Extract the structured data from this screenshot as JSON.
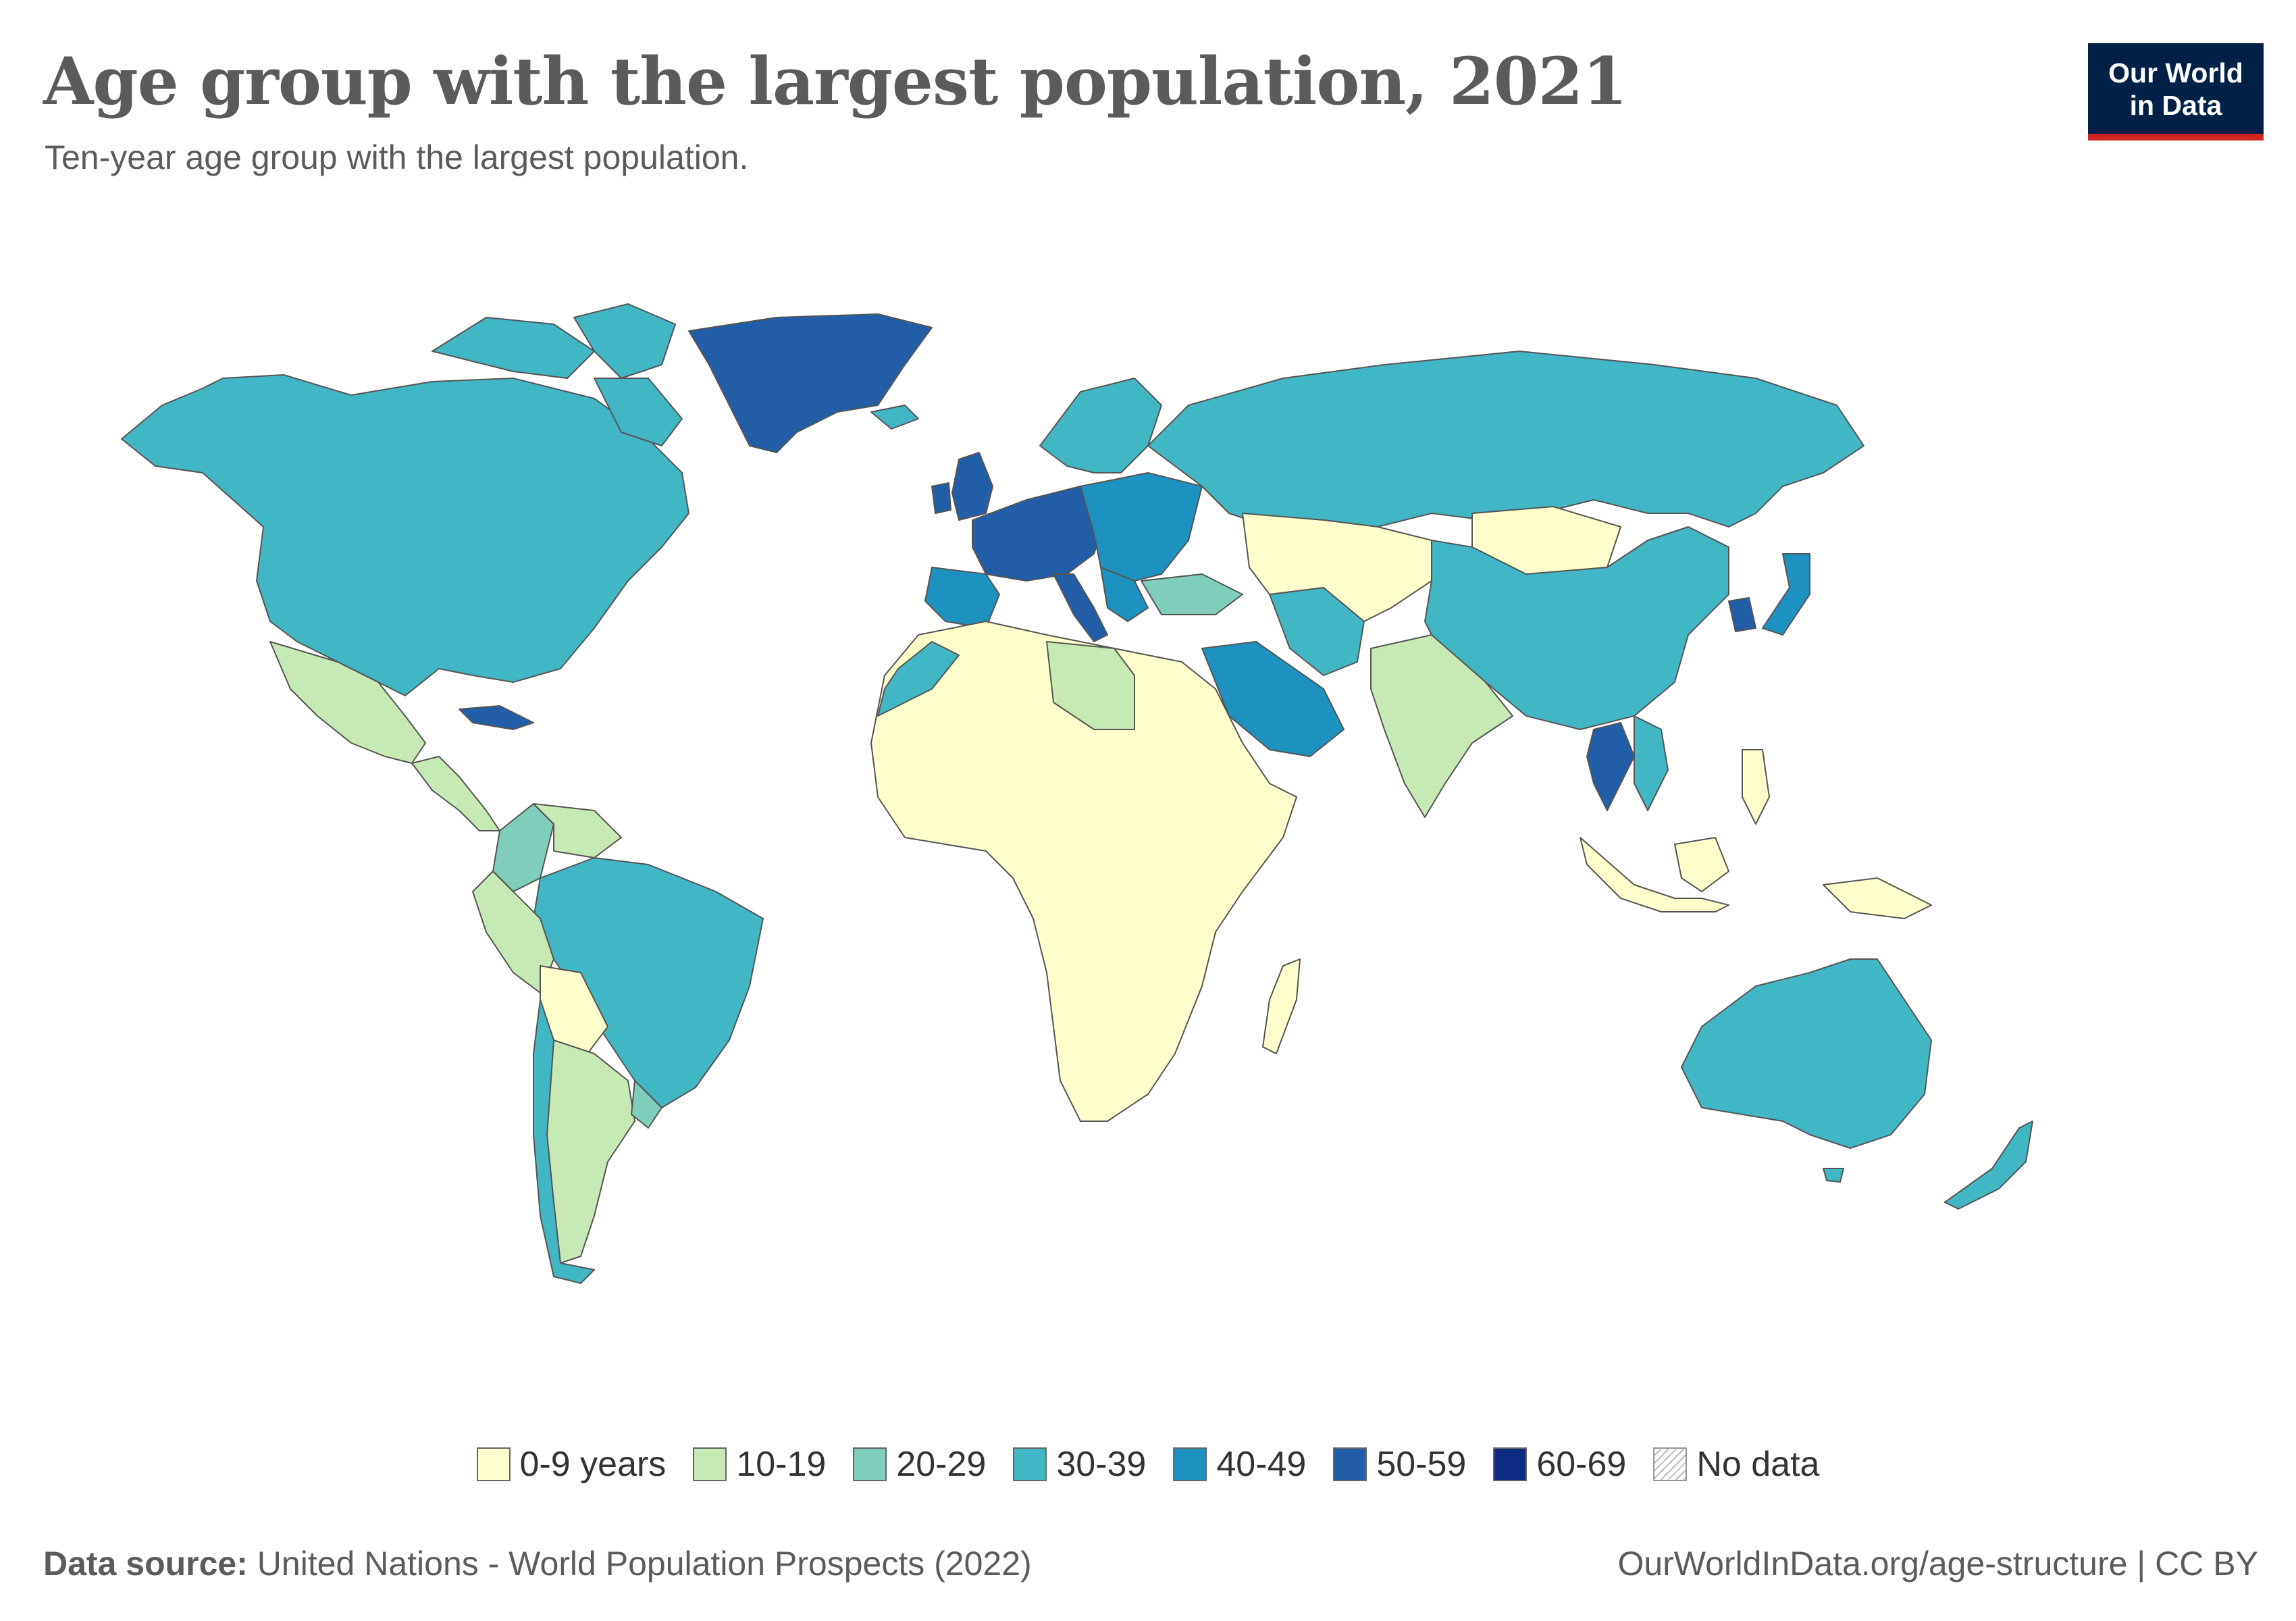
{
  "header": {
    "title": "Age group with the largest population, 2021",
    "subtitle": "Ten-year age group with the largest population."
  },
  "logo": {
    "line1": "Our World",
    "line2": "in Data"
  },
  "legend": [
    {
      "label": "0-9 years",
      "color": "#ffffcc"
    },
    {
      "label": "10-19",
      "color": "#c7e9b4"
    },
    {
      "label": "20-29",
      "color": "#7fcdbb"
    },
    {
      "label": "30-39",
      "color": "#41b6c4"
    },
    {
      "label": "40-49",
      "color": "#1d91c0"
    },
    {
      "label": "50-59",
      "color": "#225ea8"
    },
    {
      "label": "60-69",
      "color": "#0c2c84"
    },
    {
      "label": "No data",
      "color": "hatched"
    }
  ],
  "footer": {
    "source_label": "Data source:",
    "source_text": "United Nations - World Population Prospects (2022)",
    "url_text": "OurWorldInData.org/age-structure | CC BY"
  },
  "map_data": {
    "North America (Canada, USA)": "30-39",
    "Greenland": "50-59",
    "Mexico": "10-19",
    "Central America": "10-19",
    "Cuba": "50-59",
    "Brazil": "30-39",
    "Colombia": "20-29",
    "Venezuela": "10-19",
    "Peru": "10-19",
    "Bolivia": "0-9 years",
    "Argentina": "10-19",
    "Chile": "30-39",
    "Uruguay": "20-29",
    "Western Europe": "50-59",
    "Spain/Portugal": "40-49",
    "Italy": "50-59",
    "Nordic countries": "30-39",
    "Eastern Europe": "40-49",
    "Russia": "30-39",
    "Turkey": "20-29",
    "Africa": "0-9 years",
    "Libya": "10-19",
    "Morocco": "30-39",
    "Saudi Arabia": "40-49",
    "Iran": "30-39",
    "Central Asia": "0-9 years",
    "Mongolia": "0-9 years",
    "China": "30-39",
    "India": "10-19",
    "South Korea": "50-59",
    "Japan": "40-49",
    "Thailand": "50-59",
    "Vietnam": "30-39",
    "Indonesia": "0-9 years",
    "Philippines": "0-9 years",
    "Papua New Guinea": "0-9 years",
    "Australia": "30-39",
    "New Zealand": "30-39",
    "Madagascar": "0-9 years"
  }
}
